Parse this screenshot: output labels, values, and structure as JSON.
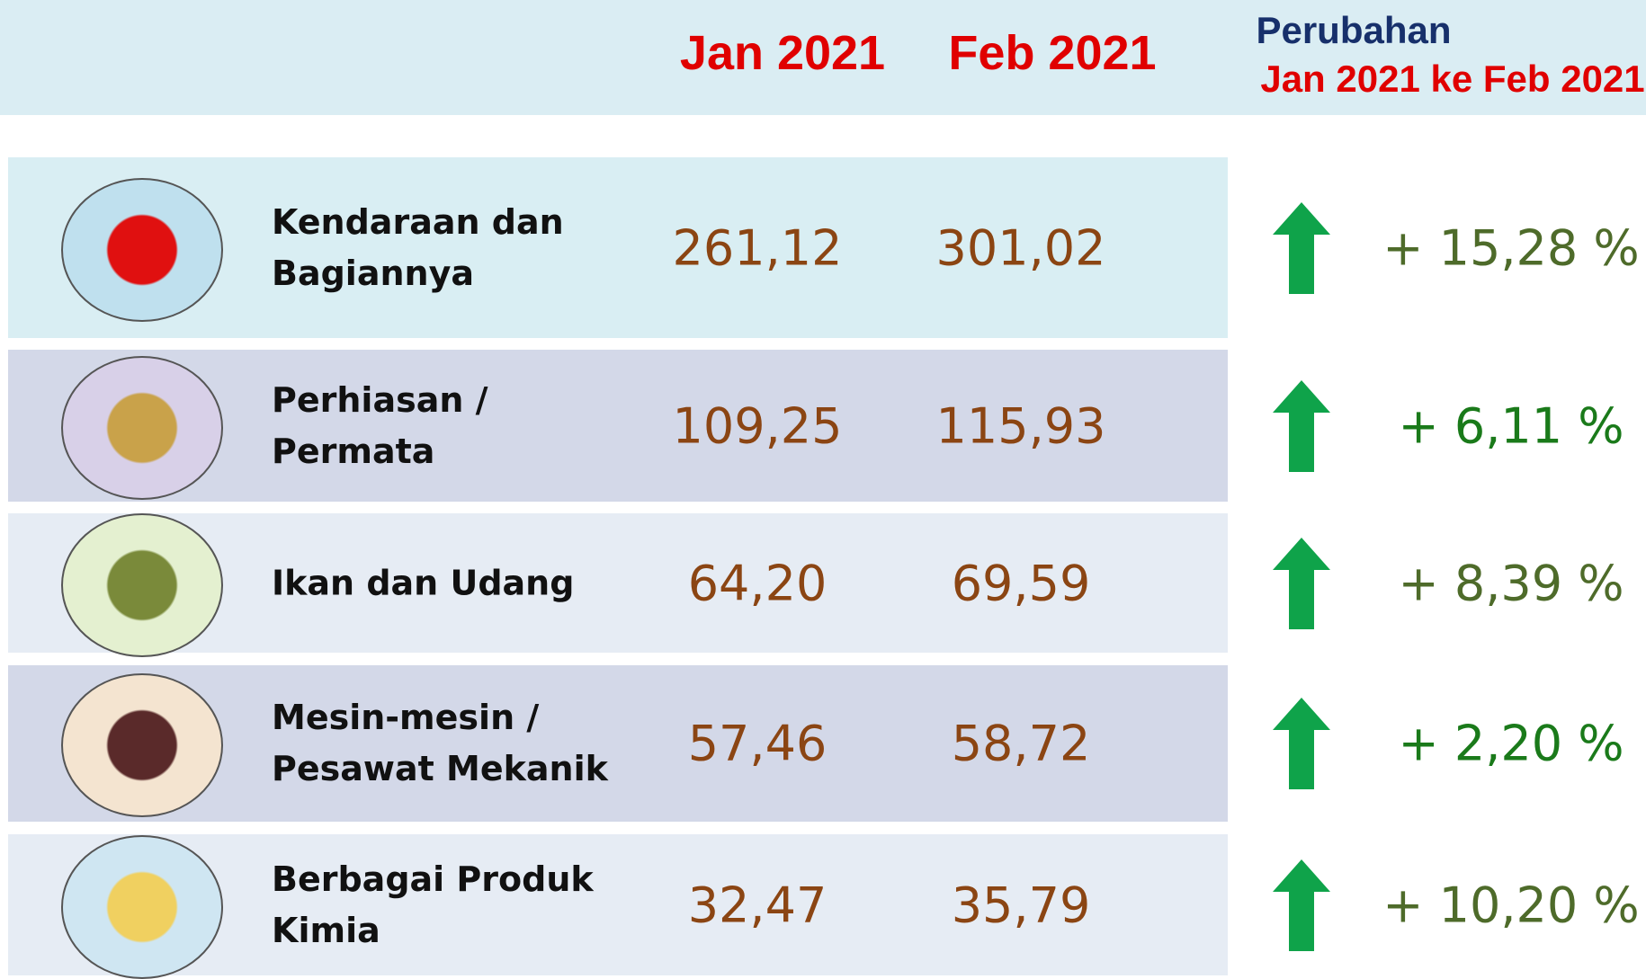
{
  "header": {
    "col1": "Jan 2021",
    "col2": "Feb 2021",
    "col3_title": "Perubahan",
    "col3_subtitle": "Jan 2021 ke Feb 2021"
  },
  "table": {
    "rows": [
      [
        "Kendaraan dan Bagiannya",
        "261,12",
        "301,02",
        "+ 15,28 %"
      ],
      [
        "Perhiasan / Permata",
        "109,25",
        "115,93",
        "+ 6,11 %"
      ],
      [
        "Ikan dan Udang",
        "64,20",
        "69,59",
        "+ 8,39 %"
      ],
      [
        "Mesin-mesin / Pesawat Mekanik",
        "57,46",
        "58,72",
        "+ 2,20 %"
      ],
      [
        "Berbagai Produk Kimia",
        "32,47",
        "35,79",
        "+ 10,20 %"
      ]
    ]
  }
}
